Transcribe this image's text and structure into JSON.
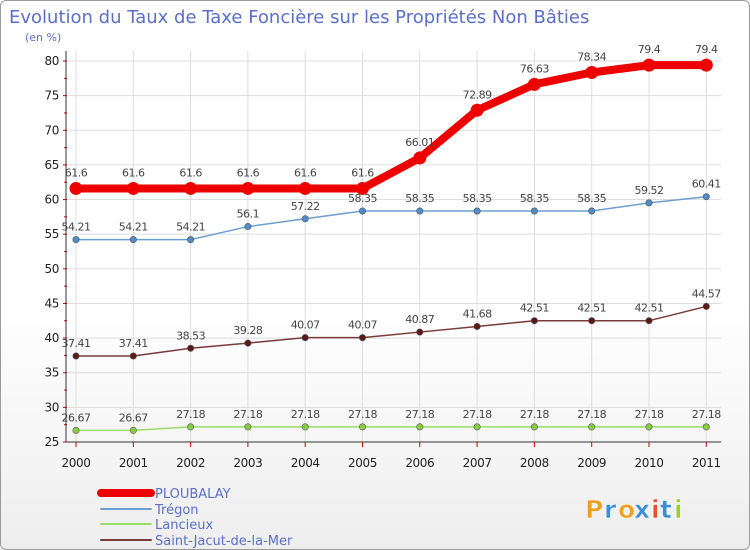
{
  "chart_data": {
    "type": "line",
    "title": "Evolution du Taux de Taxe Foncière sur les Propriétés Non Bâties",
    "ylabel": "(en %)",
    "xlabel": "",
    "x": [
      "2000",
      "2001",
      "2002",
      "2003",
      "2004",
      "2005",
      "2006",
      "2007",
      "2008",
      "2009",
      "2010",
      "2011"
    ],
    "ylim": [
      25,
      80
    ],
    "yticks": [
      "25",
      "30",
      "35",
      "40",
      "45",
      "50",
      "55",
      "60",
      "65",
      "70",
      "75",
      "80"
    ],
    "grid": true,
    "legend_position": "bottom-left",
    "series": [
      {
        "name": "PLOUBALAY",
        "color": "#ee0000",
        "emphasis": true,
        "values": [
          61.6,
          61.6,
          61.6,
          61.6,
          61.6,
          61.6,
          66.01,
          72.89,
          76.63,
          78.34,
          79.4,
          79.4
        ],
        "labels": [
          "61.6",
          "61.6",
          "61.6",
          "61.6",
          "61.6",
          "61.6",
          "66.01",
          "72.89",
          "76.63",
          "78.34",
          "79.4",
          "79.4"
        ]
      },
      {
        "name": "Trégon",
        "color": "#6c9fd0",
        "point_color": "#4f8cc8",
        "values": [
          54.21,
          54.21,
          54.21,
          56.1,
          57.22,
          58.35,
          58.35,
          58.35,
          58.35,
          58.35,
          59.52,
          60.41
        ],
        "labels": [
          "54.21",
          "54.21",
          "54.21",
          "56.1",
          "57.22",
          "58.35",
          "58.35",
          "58.35",
          "58.35",
          "58.35",
          "59.52",
          "60.41"
        ]
      },
      {
        "name": "Lancieux",
        "color": "#99dd66",
        "point_color": "#88cc44",
        "values": [
          26.67,
          26.67,
          27.18,
          27.18,
          27.18,
          27.18,
          27.18,
          27.18,
          27.18,
          27.18,
          27.18,
          27.18
        ],
        "labels": [
          "26.67",
          "26.67",
          "27.18",
          "27.18",
          "27.18",
          "27.18",
          "27.18",
          "27.18",
          "27.18",
          "27.18",
          "27.18",
          "27.18"
        ]
      },
      {
        "name": "Saint-Jacut-de-la-Mer",
        "color": "#7a3a3a",
        "point_color": "#5a1a1a",
        "values": [
          37.41,
          37.41,
          38.53,
          39.28,
          40.07,
          40.07,
          40.87,
          41.68,
          42.51,
          42.51,
          42.51,
          44.57
        ],
        "labels": [
          "37.41",
          "37.41",
          "38.53",
          "39.28",
          "40.07",
          "40.07",
          "40.87",
          "41.68",
          "42.51",
          "42.51",
          "42.51",
          "44.57"
        ]
      }
    ]
  },
  "logo": {
    "text": "Proxiti",
    "letters": [
      "P",
      "r",
      "o",
      "x",
      "i",
      "t",
      "i"
    ],
    "colors": [
      "#f0a020",
      "#3a8fd8",
      "#f0a020",
      "#3a8fd8",
      "#e85030",
      "#3a8fd8",
      "#9acd32"
    ]
  }
}
